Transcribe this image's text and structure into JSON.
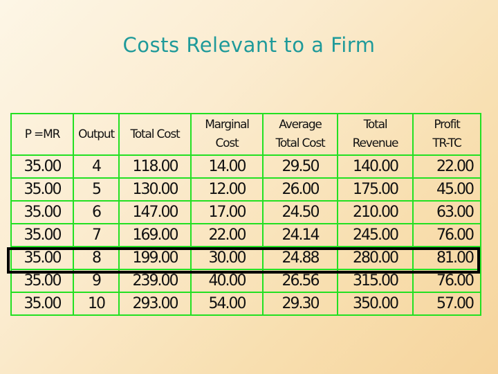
{
  "title": "Costs Relevant to a Firm",
  "table": {
    "headers": [
      [
        "P =MR"
      ],
      [
        "Output"
      ],
      [
        "Total Cost"
      ],
      [
        "Marginal",
        "Cost"
      ],
      [
        "Average",
        "Total Cost"
      ],
      [
        "Total",
        "Revenue"
      ],
      [
        "Profit",
        "TR-TC"
      ]
    ],
    "rows": [
      [
        "35.00",
        "4",
        "118.00",
        "14.00",
        "29.50",
        "140.00",
        "22.00"
      ],
      [
        "35.00",
        "5",
        "130.00",
        "12.00",
        "26.00",
        "175.00",
        "45.00"
      ],
      [
        "35.00",
        "6",
        "147.00",
        "17.00",
        "24.50",
        "210.00",
        "63.00"
      ],
      [
        "35.00",
        "7",
        "169.00",
        "22.00",
        "24.14",
        "245.00",
        "76.00"
      ],
      [
        "35.00",
        "8",
        "199.00",
        "30.00",
        "24.88",
        "280.00",
        "81.00"
      ],
      [
        "35.00",
        "9",
        "239.00",
        "40.00",
        "26.56",
        "315.00",
        "76.00"
      ],
      [
        "35.00",
        "10",
        "293.00",
        "54.00",
        "29.30",
        "350.00",
        "57.00"
      ]
    ],
    "highlighted_output": "8"
  },
  "colors": {
    "title": "#1f9a9a",
    "grid": "#22e022",
    "highlight_border": "#000000"
  }
}
